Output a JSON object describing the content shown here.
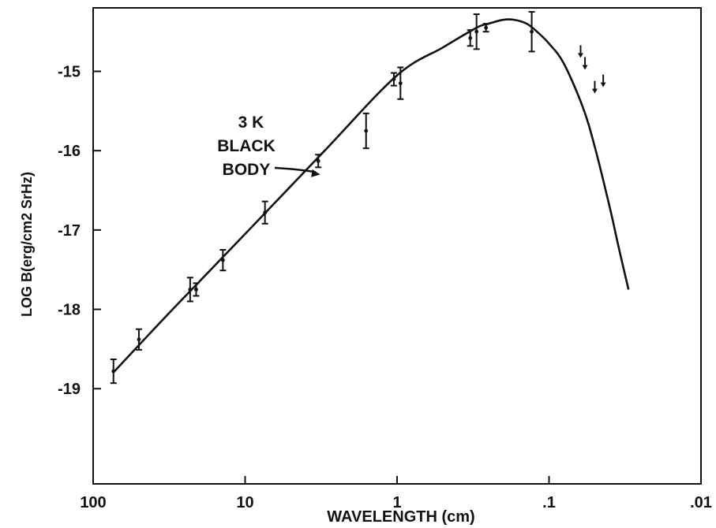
{
  "chart_data": {
    "type": "scatter",
    "title": "",
    "xlabel": "WAVELENGTH (cm)",
    "ylabel": "LOG B(erg/cm2 SrHz)",
    "x_scale": "log",
    "x_reversed": true,
    "xlim": [
      100,
      0.01
    ],
    "ylim": [
      -20.2,
      -14.2
    ],
    "grid": false,
    "x_ticks": [
      {
        "value": 100,
        "label": "100"
      },
      {
        "value": 10,
        "label": "10"
      },
      {
        "value": 1,
        "label": "1"
      },
      {
        "value": 0.1,
        "label": ".1"
      },
      {
        "value": 0.01,
        "label": ".01"
      }
    ],
    "y_ticks": [
      {
        "value": -15,
        "label": "-15"
      },
      {
        "value": -16,
        "label": "-16"
      },
      {
        "value": -17,
        "label": "-17"
      },
      {
        "value": -18,
        "label": "-18"
      },
      {
        "value": -19,
        "label": "-19"
      }
    ],
    "annotation": {
      "lines": [
        "3 K",
        "BLACK",
        "BODY"
      ],
      "points_to": [
        3.2,
        -16.3
      ]
    },
    "series": [
      {
        "kind": "curve",
        "x": [
          74,
          30,
          10,
          3,
          1,
          0.5,
          0.3,
          0.25,
          0.2,
          0.17,
          0.14,
          0.12,
          0.1,
          0.08,
          0.06,
          0.05,
          0.04,
          0.035,
          0.03
        ],
        "y": [
          -18.8,
          -18.0,
          -17.05,
          -16.0,
          -15.05,
          -14.7,
          -14.45,
          -14.4,
          -14.35,
          -14.35,
          -14.4,
          -14.5,
          -14.65,
          -14.9,
          -15.45,
          -15.95,
          -16.7,
          -17.2,
          -17.75
        ]
      },
      {
        "kind": "measurements",
        "points": [
          {
            "x": 73.5,
            "y": -18.78,
            "err": 0.15
          },
          {
            "x": 50,
            "y": -18.38,
            "err": 0.13
          },
          {
            "x": 23,
            "y": -17.75,
            "err": 0.15
          },
          {
            "x": 21,
            "y": -17.75,
            "err": 0.08
          },
          {
            "x": 14,
            "y": -17.38,
            "err": 0.13
          },
          {
            "x": 7.4,
            "y": -16.78,
            "err": 0.14
          },
          {
            "x": 3.3,
            "y": -16.13,
            "err": 0.08
          },
          {
            "x": 1.05,
            "y": -15.1,
            "err": 0.08
          },
          {
            "x": 0.95,
            "y": -15.15,
            "err": 0.2
          },
          {
            "x": 1.6,
            "y": -15.75,
            "err": 0.22
          },
          {
            "x": 0.33,
            "y": -14.58,
            "err": 0.1
          },
          {
            "x": 0.3,
            "y": -14.5,
            "err": 0.22
          },
          {
            "x": 0.26,
            "y": -14.45,
            "err": 0.05
          },
          {
            "x": 0.13,
            "y": -14.5,
            "err": 0.25
          }
        ]
      },
      {
        "kind": "upper_limits",
        "points": [
          {
            "x": 0.062,
            "y": -14.75
          },
          {
            "x": 0.058,
            "y": -14.9
          },
          {
            "x": 0.05,
            "y": -15.2
          },
          {
            "x": 0.044,
            "y": -15.12
          }
        ]
      }
    ]
  }
}
